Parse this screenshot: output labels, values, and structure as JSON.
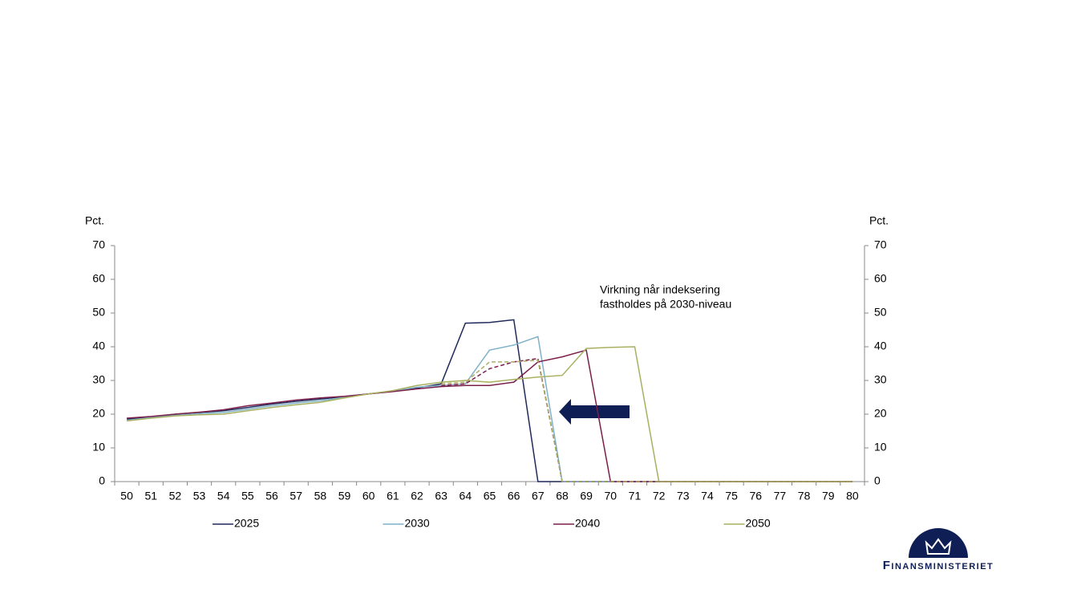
{
  "chart_data": {
    "type": "line",
    "y_label": "Pct.",
    "y2_label": "Pct.",
    "annotation": [
      "Virkning når indeksering",
      "fastholdes på 2030-niveau"
    ],
    "categories": [
      "50",
      "51",
      "52",
      "53",
      "54",
      "55",
      "56",
      "57",
      "58",
      "59",
      "60",
      "61",
      "62",
      "63",
      "64",
      "65",
      "66",
      "67",
      "68",
      "69",
      "70",
      "71",
      "72",
      "73",
      "74",
      "75",
      "76",
      "77",
      "78",
      "79",
      "80"
    ],
    "ylim": [
      0,
      70
    ],
    "yticks": [
      0,
      10,
      20,
      30,
      40,
      50,
      60,
      70
    ],
    "y2lim": [
      0,
      70
    ],
    "y2ticks": [
      0,
      10,
      20,
      30,
      40,
      50,
      60,
      70
    ],
    "series": [
      {
        "name": "2025",
        "color": "#1f2a5a",
        "values": [
          18.5,
          19.2,
          20,
          20.5,
          21,
          22,
          23,
          23.8,
          24.5,
          25.2,
          26,
          26.8,
          27.8,
          29,
          47,
          47.2,
          48,
          0,
          0,
          0,
          0,
          0,
          0,
          0,
          0,
          0,
          0,
          0,
          0,
          0,
          0
        ]
      },
      {
        "name": "2030",
        "color": "#7fb2c8",
        "values": [
          18.2,
          19,
          19.7,
          20.2,
          20.5,
          21.5,
          22.5,
          23.3,
          24,
          25,
          26,
          26.8,
          28,
          28.5,
          29,
          39,
          40.5,
          43,
          0,
          0,
          0,
          0,
          0,
          0,
          0,
          0,
          0,
          0,
          0,
          0,
          0
        ]
      },
      {
        "name": "2040",
        "color": "#7b1f4a",
        "values": [
          18.8,
          19.3,
          20,
          20.6,
          21.3,
          22.5,
          23.3,
          24.2,
          24.8,
          25.3,
          26,
          26.7,
          27.5,
          28.2,
          28.5,
          28.5,
          29.5,
          35.5,
          37,
          39,
          0,
          0,
          0,
          0,
          0,
          0,
          0,
          0,
          0,
          0,
          0
        ]
      },
      {
        "name": "2050",
        "color": "#a8b060",
        "values": [
          18,
          18.8,
          19.5,
          19.8,
          20,
          21,
          22,
          22.8,
          23.5,
          24.8,
          26,
          27,
          28.5,
          29.5,
          30,
          29.5,
          30.3,
          31,
          31.5,
          39.5,
          39.8,
          40,
          0,
          0,
          0,
          0,
          0,
          0,
          0,
          0,
          0
        ]
      },
      {
        "color": "#7b1f4a",
        "dashed": true,
        "values": [
          null,
          null,
          null,
          null,
          null,
          null,
          null,
          null,
          null,
          null,
          null,
          null,
          null,
          28.5,
          29,
          33.5,
          35.5,
          36.5,
          0,
          0,
          0,
          0,
          0,
          0,
          0,
          0,
          0,
          0,
          0,
          0,
          0
        ]
      },
      {
        "color": "#a8b060",
        "dashed": true,
        "values": [
          null,
          null,
          null,
          null,
          null,
          null,
          null,
          null,
          null,
          null,
          null,
          null,
          null,
          29,
          29.5,
          35.5,
          35.5,
          36,
          0,
          0,
          0,
          0,
          0,
          0,
          0,
          0,
          0,
          0,
          0,
          0,
          0
        ]
      }
    ]
  },
  "logo": "Finansministeriet"
}
